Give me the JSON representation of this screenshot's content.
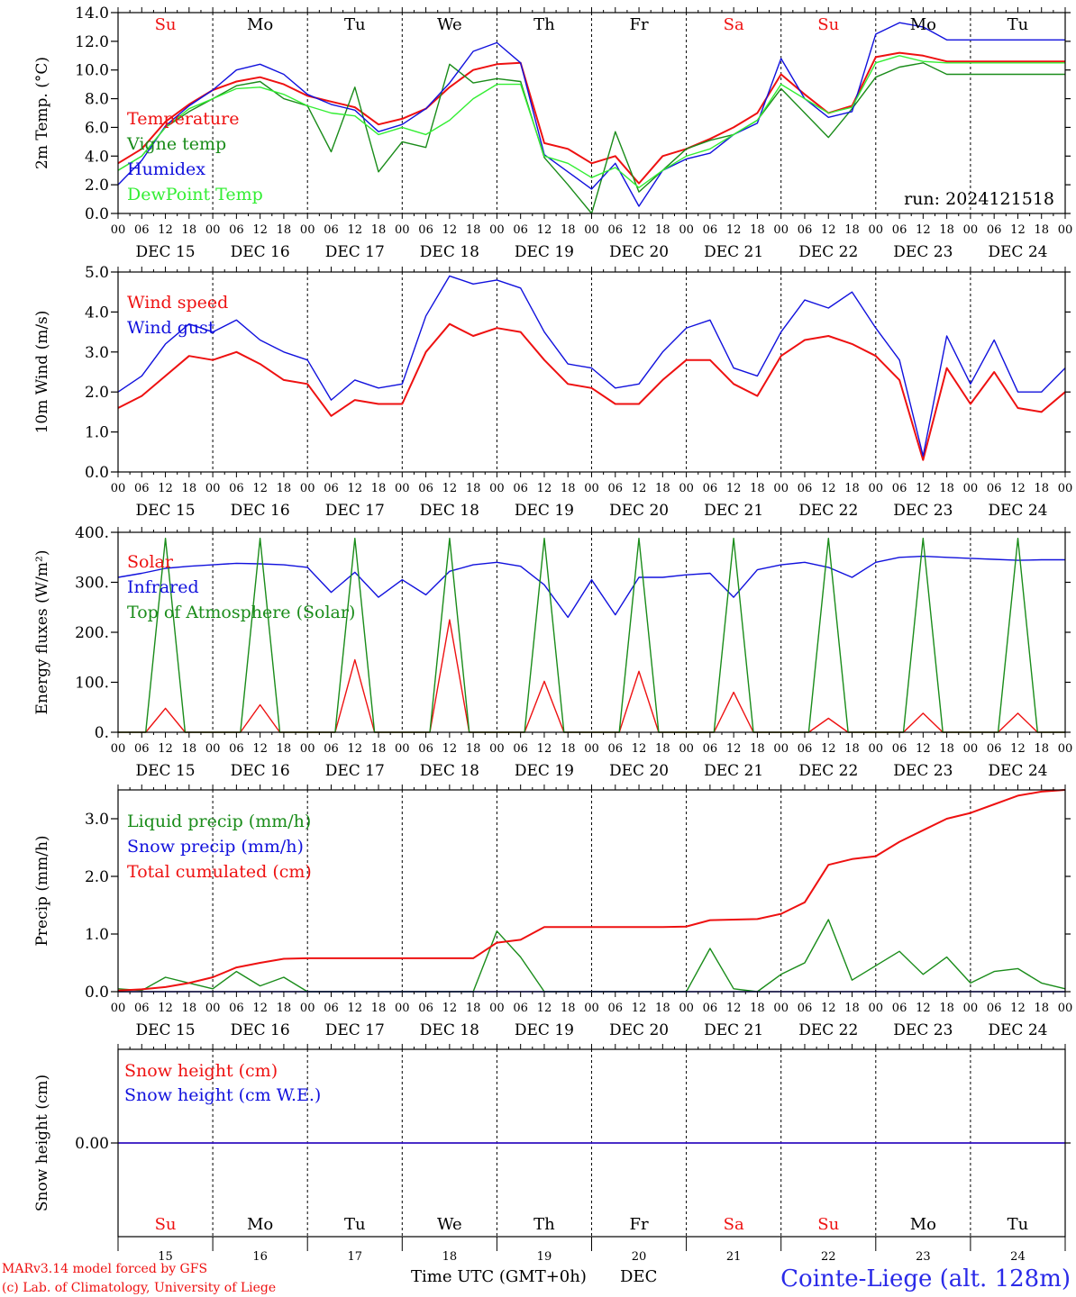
{
  "colors": {
    "red": "#ee1111",
    "dark_green": "#1a8c1a",
    "blue": "#1111dd",
    "light_green": "#33ee33",
    "axis": "#000000"
  },
  "hour_ticks": [
    "00",
    "06",
    "12",
    "18"
  ],
  "date_labels": [
    "DEC 15",
    "DEC 16",
    "DEC 17",
    "DEC 18",
    "DEC 19",
    "DEC 20",
    "DEC 21",
    "DEC 22",
    "DEC 23",
    "DEC 24"
  ],
  "weekdays": [
    "Su",
    "Mo",
    "Tu",
    "We",
    "Th",
    "Fr",
    "Sa",
    "Su",
    "Mo",
    "Tu"
  ],
  "weekday_colors": [
    "red",
    "black",
    "black",
    "black",
    "black",
    "black",
    "red",
    "red",
    "black",
    "black"
  ],
  "bottom_day_numbers": [
    "15",
    "16",
    "17",
    "18",
    "19",
    "20",
    "21",
    "22",
    "23",
    "24"
  ],
  "footer": {
    "credit_line1": "MARv3.14 model forced by GFS",
    "credit_line2": "(c) Lab. of Climatology, University of Liege",
    "xlabel": "Time UTC (GMT+0h)",
    "month": "DEC",
    "station": "Cointe-Liege (alt. 128m)"
  },
  "chart_data": [
    {
      "type": "line",
      "ylabel": "2m Temp. (°C)",
      "ylim": [
        0,
        14
      ],
      "yticks": [
        0,
        2,
        4,
        6,
        8,
        10,
        12,
        14
      ],
      "ytick_labels": [
        "0.0",
        "2.0",
        "4.0",
        "6.0",
        "8.0",
        "10.0",
        "12.0",
        "14.0"
      ],
      "x_unit": "hours since DEC 15 00 UTC",
      "xlim": [
        0,
        240
      ],
      "annotation": "run: 2024121518",
      "grid": "vertical dotted at day boundaries",
      "series": [
        {
          "name": "Temperature",
          "color": "red",
          "x": [
            0,
            6,
            12,
            18,
            24,
            30,
            36,
            42,
            48,
            54,
            60,
            66,
            72,
            78,
            84,
            90,
            96,
            102,
            108,
            114,
            120,
            126,
            132,
            138,
            144,
            150,
            156,
            162,
            168,
            174,
            180,
            186,
            192,
            198,
            204,
            210,
            216,
            222,
            228,
            234,
            240
          ],
          "y": [
            3.5,
            4.5,
            6.4,
            7.6,
            8.6,
            9.2,
            9.5,
            9.0,
            8.2,
            7.8,
            7.4,
            6.2,
            6.6,
            7.3,
            8.8,
            10.0,
            10.4,
            10.5,
            4.9,
            4.5,
            3.5,
            4.0,
            2.1,
            4.0,
            4.5,
            5.2,
            6.0,
            7.0,
            9.7,
            8.3,
            7.0,
            7.5,
            10.9,
            11.2,
            11.0,
            10.6,
            10.6,
            10.6,
            10.6,
            10.6,
            10.6
          ]
        },
        {
          "name": "Vigne temp",
          "color": "dark_green",
          "x": [
            0,
            6,
            12,
            18,
            24,
            30,
            36,
            42,
            48,
            54,
            60,
            66,
            72,
            78,
            84,
            90,
            96,
            102,
            108,
            114,
            120,
            126,
            132,
            138,
            144,
            150,
            156,
            162,
            168,
            174,
            180,
            186,
            192,
            198,
            204,
            210,
            216,
            222,
            228,
            234,
            240
          ],
          "y": [
            3.0,
            4.0,
            6.0,
            7.1,
            8.0,
            8.9,
            9.2,
            8.0,
            7.5,
            4.3,
            8.8,
            2.9,
            5.0,
            4.6,
            10.4,
            9.1,
            9.4,
            9.2,
            3.9,
            2.0,
            0.0,
            5.7,
            1.5,
            3.0,
            4.5,
            5.1,
            5.5,
            6.5,
            8.7,
            7.0,
            5.3,
            7.3,
            9.5,
            10.2,
            10.5,
            9.7,
            9.7,
            9.7,
            9.7,
            9.7,
            9.7
          ]
        },
        {
          "name": "Humidex",
          "color": "blue",
          "x": [
            0,
            6,
            12,
            18,
            24,
            30,
            36,
            42,
            48,
            54,
            60,
            66,
            72,
            78,
            84,
            90,
            96,
            102,
            108,
            114,
            120,
            126,
            132,
            138,
            144,
            150,
            156,
            162,
            168,
            174,
            180,
            186,
            192,
            198,
            204,
            210,
            216,
            222,
            228,
            234,
            240
          ],
          "y": [
            2.0,
            3.7,
            6.1,
            7.5,
            8.6,
            10.0,
            10.4,
            9.7,
            8.3,
            7.6,
            7.2,
            5.7,
            6.2,
            7.3,
            9.1,
            11.3,
            11.9,
            10.5,
            4.1,
            2.9,
            1.7,
            3.5,
            0.5,
            3.0,
            3.8,
            4.2,
            5.5,
            6.3,
            10.8,
            8.0,
            6.7,
            7.1,
            12.5,
            13.3,
            13.0,
            12.1,
            12.1,
            12.1,
            12.1,
            12.1,
            12.1
          ]
        },
        {
          "name": "DewPoint Temp",
          "color": "light_green",
          "x": [
            0,
            6,
            12,
            18,
            24,
            30,
            36,
            42,
            48,
            54,
            60,
            66,
            72,
            78,
            84,
            90,
            96,
            102,
            108,
            114,
            120,
            126,
            132,
            138,
            144,
            150,
            156,
            162,
            168,
            174,
            180,
            186,
            192,
            198,
            204,
            210,
            216,
            222,
            228,
            234,
            240
          ],
          "y": [
            3.0,
            4.0,
            6.0,
            7.3,
            8.0,
            8.7,
            8.8,
            8.3,
            7.5,
            7.0,
            6.8,
            5.5,
            6.0,
            5.5,
            6.5,
            8.0,
            9.0,
            9.0,
            4.0,
            3.5,
            2.5,
            3.2,
            1.8,
            3.0,
            4.0,
            4.5,
            5.5,
            6.5,
            9.0,
            8.0,
            7.0,
            7.4,
            10.5,
            11.0,
            10.6,
            10.5,
            10.5,
            10.5,
            10.5,
            10.5,
            10.5
          ]
        }
      ],
      "legend_placement": "left"
    },
    {
      "type": "line",
      "ylabel": "10m Wind (m/s)",
      "ylim": [
        0,
        5
      ],
      "yticks": [
        0,
        1,
        2,
        3,
        4,
        5
      ],
      "ytick_labels": [
        "0.0",
        "1.0",
        "2.0",
        "3.0",
        "4.0",
        "5.0"
      ],
      "x_unit": "hours since DEC 15 00 UTC",
      "xlim": [
        0,
        240
      ],
      "series": [
        {
          "name": "Wind speed",
          "color": "red",
          "x": [
            0,
            6,
            12,
            18,
            24,
            30,
            36,
            42,
            48,
            54,
            60,
            66,
            72,
            78,
            84,
            90,
            96,
            102,
            108,
            114,
            120,
            126,
            132,
            138,
            144,
            150,
            156,
            162,
            168,
            174,
            180,
            186,
            192,
            198,
            204,
            210,
            216,
            222,
            228,
            234,
            240
          ],
          "y": [
            1.6,
            1.9,
            2.4,
            2.9,
            2.8,
            3.0,
            2.7,
            2.3,
            2.2,
            1.4,
            1.8,
            1.7,
            1.7,
            3.0,
            3.7,
            3.4,
            3.6,
            3.5,
            2.8,
            2.2,
            2.1,
            1.7,
            1.7,
            2.3,
            2.8,
            2.8,
            2.2,
            1.9,
            2.9,
            3.3,
            3.4,
            3.2,
            2.9,
            2.3,
            0.3,
            2.6,
            1.7,
            2.5,
            1.6,
            1.5,
            2.0
          ]
        },
        {
          "name": "Wind gust",
          "color": "blue",
          "x": [
            0,
            6,
            12,
            18,
            24,
            30,
            36,
            42,
            48,
            54,
            60,
            66,
            72,
            78,
            84,
            90,
            96,
            102,
            108,
            114,
            120,
            126,
            132,
            138,
            144,
            150,
            156,
            162,
            168,
            174,
            180,
            186,
            192,
            198,
            204,
            210,
            216,
            222,
            228,
            234,
            240
          ],
          "y": [
            2.0,
            2.4,
            3.2,
            3.7,
            3.5,
            3.8,
            3.3,
            3.0,
            2.8,
            1.8,
            2.3,
            2.1,
            2.2,
            3.9,
            4.9,
            4.7,
            4.8,
            4.6,
            3.5,
            2.7,
            2.6,
            2.1,
            2.2,
            3.0,
            3.6,
            3.8,
            2.6,
            2.4,
            3.5,
            4.3,
            4.1,
            4.5,
            3.6,
            2.8,
            0.4,
            3.4,
            2.2,
            3.3,
            2.0,
            2.0,
            2.6
          ]
        }
      ],
      "legend_placement": "left"
    },
    {
      "type": "line",
      "ylabel": "Energy fluxes (W/m²)",
      "ylim": [
        0,
        400
      ],
      "yticks": [
        0,
        100,
        200,
        300,
        400
      ],
      "ytick_labels": [
        "0.",
        "100.",
        "200.",
        "300.",
        "400."
      ],
      "x_unit": "hours since DEC 15 00 UTC",
      "xlim": [
        0,
        240
      ],
      "series": [
        {
          "name": "Solar",
          "color": "red",
          "daily_peak_hour": 12,
          "daily_peaks": [
            48,
            55,
            145,
            225,
            102,
            122,
            80,
            28,
            38,
            38
          ]
        },
        {
          "name": "Infrared",
          "color": "blue",
          "x": [
            0,
            6,
            12,
            18,
            24,
            30,
            36,
            42,
            48,
            54,
            60,
            66,
            72,
            78,
            84,
            90,
            96,
            102,
            108,
            114,
            120,
            126,
            132,
            138,
            144,
            150,
            156,
            162,
            168,
            174,
            180,
            186,
            192,
            198,
            204,
            210,
            216,
            222,
            228,
            234,
            240
          ],
          "y": [
            310,
            318,
            328,
            332,
            335,
            338,
            337,
            335,
            330,
            280,
            320,
            270,
            305,
            275,
            322,
            335,
            340,
            332,
            295,
            230,
            305,
            235,
            310,
            310,
            315,
            318,
            270,
            325,
            335,
            340,
            330,
            310,
            340,
            350,
            352,
            350,
            348,
            346,
            344,
            345,
            345
          ]
        },
        {
          "name": "Top of Atmosphere (Solar)",
          "color": "dark_green",
          "daily_peak_hour": 12,
          "daily_peaks": [
            388,
            388,
            388,
            388,
            388,
            388,
            388,
            388,
            388,
            388
          ]
        }
      ],
      "legend_placement": "left"
    },
    {
      "type": "line",
      "ylabel": "Precip (mm/h)",
      "ylim": [
        0,
        3.5
      ],
      "yticks": [
        0,
        1,
        2,
        3
      ],
      "ytick_labels": [
        "0.0",
        "1.0",
        "2.0",
        "3.0"
      ],
      "x_unit": "hours since DEC 15 00 UTC",
      "xlim": [
        0,
        240
      ],
      "series": [
        {
          "name": "Liquid precip (mm/h)",
          "color": "dark_green",
          "x": [
            0,
            6,
            12,
            18,
            24,
            30,
            36,
            42,
            48,
            54,
            60,
            66,
            72,
            78,
            84,
            90,
            96,
            102,
            108,
            114,
            120,
            126,
            132,
            138,
            144,
            150,
            156,
            162,
            168,
            174,
            180,
            186,
            192,
            198,
            204,
            210,
            216,
            222,
            228,
            234,
            240
          ],
          "y": [
            0.05,
            0.02,
            0.25,
            0.15,
            0.05,
            0.35,
            0.1,
            0.25,
            0.0,
            0.0,
            0.0,
            0.0,
            0.0,
            0.0,
            0.0,
            0.0,
            1.05,
            0.6,
            0.0,
            0.0,
            0.0,
            0.0,
            0.0,
            0.0,
            0.0,
            0.75,
            0.05,
            0.0,
            0.3,
            0.5,
            1.25,
            0.2,
            0.45,
            0.7,
            0.3,
            0.6,
            0.15,
            0.35,
            0.4,
            0.15,
            0.05
          ]
        },
        {
          "name": "Snow precip (mm/h)",
          "color": "blue",
          "x": [
            0,
            240
          ],
          "y": [
            0.0,
            0.0
          ]
        },
        {
          "name": "Total cumulated (cm)",
          "color": "red",
          "x": [
            0,
            6,
            12,
            18,
            24,
            30,
            36,
            42,
            48,
            54,
            60,
            66,
            72,
            78,
            84,
            90,
            96,
            102,
            108,
            114,
            120,
            126,
            132,
            138,
            144,
            150,
            156,
            162,
            168,
            174,
            180,
            186,
            192,
            198,
            204,
            210,
            216,
            222,
            228,
            234,
            240
          ],
          "y": [
            0.02,
            0.04,
            0.08,
            0.15,
            0.25,
            0.42,
            0.5,
            0.57,
            0.58,
            0.58,
            0.58,
            0.58,
            0.58,
            0.58,
            0.58,
            0.58,
            0.85,
            0.9,
            1.12,
            1.12,
            1.12,
            1.12,
            1.12,
            1.12,
            1.13,
            1.24,
            1.25,
            1.26,
            1.35,
            1.55,
            2.2,
            2.3,
            2.35,
            2.6,
            2.8,
            3.0,
            3.1,
            3.25,
            3.4,
            3.47,
            3.5
          ]
        }
      ],
      "legend_placement": "left"
    },
    {
      "type": "line",
      "ylabel": "Snow height (cm)",
      "ylim": [
        -1,
        1
      ],
      "yticks": [
        0
      ],
      "ytick_labels": [
        "0.00"
      ],
      "x_unit": "hours since DEC 15 00 UTC",
      "xlim": [
        0,
        240
      ],
      "series": [
        {
          "name": "Snow height (cm)",
          "color": "red",
          "x": [
            0,
            240
          ],
          "y": [
            0.0,
            0.0
          ]
        },
        {
          "name": "Snow height (cm W.E.)",
          "color": "blue",
          "x": [
            0,
            240
          ],
          "y": [
            0.0,
            0.0
          ]
        }
      ],
      "legend_placement": "left"
    }
  ]
}
